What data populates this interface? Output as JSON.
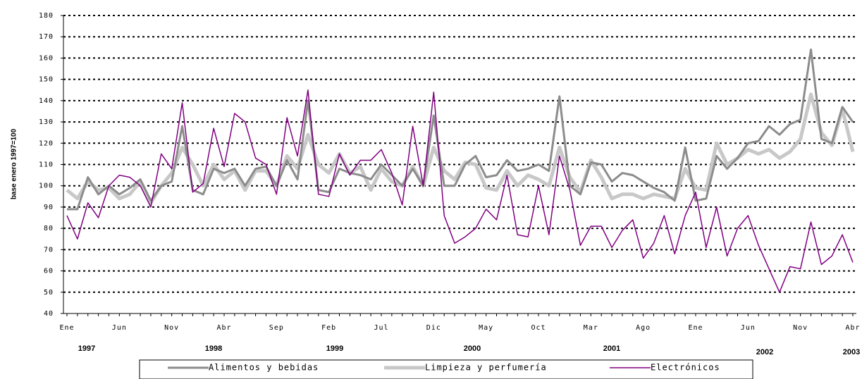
{
  "chart_data": {
    "type": "line",
    "y_label": "base enero 1997=100",
    "categories": [
      "Ene",
      null,
      null,
      null,
      null,
      "Jun",
      null,
      null,
      null,
      null,
      "Nov",
      null,
      null,
      null,
      null,
      "Abr",
      null,
      null,
      null,
      null,
      "Sep",
      null,
      null,
      null,
      null,
      "Feb",
      null,
      null,
      null,
      null,
      "Jul",
      null,
      null,
      null,
      null,
      "Dic",
      null,
      null,
      null,
      null,
      "May",
      null,
      null,
      null,
      null,
      "Oct",
      null,
      null,
      null,
      null,
      "Mar",
      null,
      null,
      null,
      null,
      "Ago",
      null,
      null,
      null,
      null,
      "Ene",
      null,
      null,
      null,
      null,
      "Jun",
      null,
      null,
      null,
      null,
      "Nov",
      null,
      null,
      null,
      null,
      "Abr"
    ],
    "year_labels": [
      "1997",
      "1998",
      "1999",
      "2000",
      "2001",
      "2002",
      "2003"
    ],
    "ylim": [
      40,
      180
    ],
    "yticks": [
      40,
      50,
      60,
      70,
      80,
      90,
      100,
      110,
      120,
      130,
      140,
      150,
      160,
      170,
      180
    ],
    "grid": true,
    "series": [
      {
        "name": "Alimentos y bebidas",
        "color": "#8c8c8c",
        "values": [
          89,
          89,
          104,
          96,
          100,
          96,
          99,
          103,
          93,
          100,
          102,
          128,
          98,
          96,
          108,
          106,
          108,
          100,
          108,
          109,
          100,
          112,
          103,
          140,
          98,
          97,
          108,
          106,
          105,
          103,
          110,
          105,
          100,
          108,
          100,
          133,
          100,
          100,
          110,
          114,
          104,
          105,
          112,
          107,
          108,
          110,
          107,
          142,
          100,
          96,
          111,
          110,
          102,
          106,
          105,
          102,
          99,
          97,
          93,
          118,
          93,
          94,
          114,
          108,
          113,
          120,
          121,
          128,
          124,
          129,
          131,
          164,
          122,
          120,
          137,
          130
        ]
      },
      {
        "name": "Limpieza y perfumería",
        "color": "#c8c8c8",
        "values": [
          98,
          94,
          102,
          98,
          99,
          94,
          96,
          102,
          92,
          100,
          106,
          118,
          110,
          100,
          110,
          103,
          107,
          98,
          107,
          107,
          100,
          114,
          108,
          124,
          110,
          106,
          115,
          106,
          109,
          98,
          108,
          102,
          100,
          109,
          100,
          118,
          107,
          103,
          111,
          110,
          99,
          98,
          107,
          100,
          105,
          103,
          100,
          118,
          104,
          97,
          112,
          104,
          94,
          96,
          96,
          94,
          96,
          95,
          94,
          108,
          99,
          98,
          120,
          110,
          113,
          117,
          115,
          117,
          113,
          116,
          122,
          143,
          125,
          119,
          136,
          116
        ]
      },
      {
        "name": "Electrónicos",
        "color": "#800080",
        "values": [
          86,
          75,
          92,
          85,
          100,
          105,
          104,
          100,
          90,
          115,
          108,
          139,
          97,
          101,
          127,
          109,
          134,
          130,
          113,
          110,
          96,
          132,
          114,
          145,
          96,
          95,
          115,
          105,
          112,
          112,
          117,
          106,
          91,
          128,
          100,
          144,
          86,
          73,
          76,
          80,
          89,
          84,
          105,
          77,
          76,
          100,
          77,
          114,
          98,
          72,
          81,
          81,
          71,
          79,
          84,
          66,
          73,
          86,
          68,
          86,
          97,
          71,
          90,
          67,
          80,
          86,
          72,
          61,
          50,
          62,
          61,
          83,
          63,
          67,
          77,
          64
        ]
      }
    ]
  }
}
